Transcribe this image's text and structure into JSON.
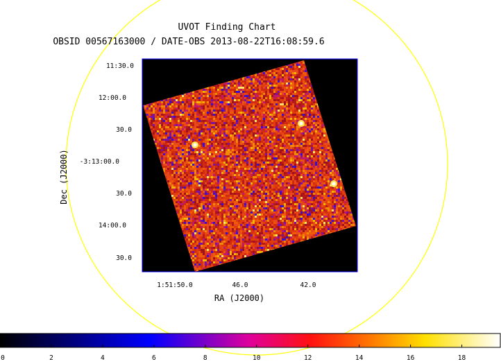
{
  "chart_data": {
    "type": "heatmap",
    "title": "UVOT Finding Chart",
    "subtitle": "OBSID 00567163000 / DATE-OBS 2013-08-22T16:08:59.6",
    "xlabel": "RA (J2000)",
    "ylabel": "Dec (J2000)",
    "x_ticks": [
      "1:51:50.0",
      "46.0",
      "42.0"
    ],
    "y_ticks": [
      "11:30.0",
      "12:00.0",
      "30.0",
      "-3:13:00.0",
      "30.0",
      "14:00.0",
      "30.0"
    ],
    "colorbar": {
      "ticks": [
        "0",
        "2",
        "4",
        "6",
        "8",
        "10",
        "12",
        "14",
        "16",
        "18"
      ],
      "range": [
        0,
        19.5
      ],
      "colormap": "heat"
    },
    "grid": false,
    "bright_sources": [
      {
        "ra": "1:51:47.9",
        "dec": "-3:12:40"
      },
      {
        "ra": "1:51:43.3",
        "dec": "-3:12:26"
      },
      {
        "ra": "1:51:41.9",
        "dec": "-3:13:16"
      }
    ]
  },
  "colors": {
    "circle": "#ffff00",
    "frame": "#0000ff",
    "background": "#000000"
  }
}
